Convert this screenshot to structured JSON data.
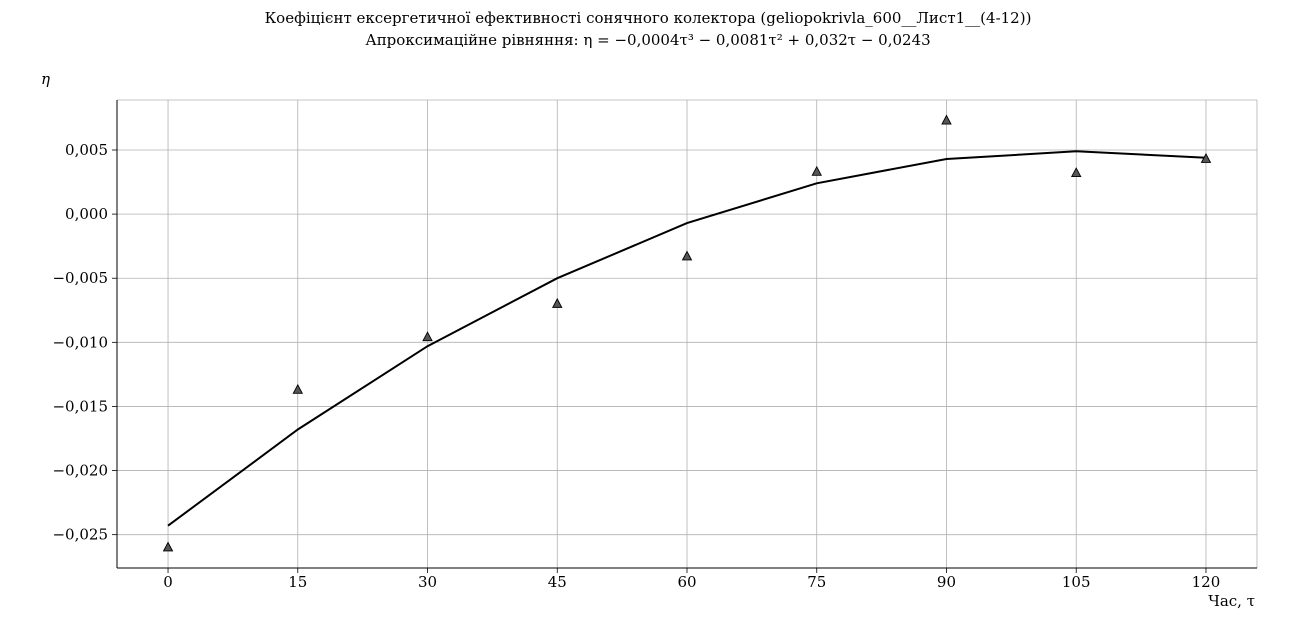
{
  "chart_data": {
    "type": "scatter",
    "title": "Коефіцієнт ексергетичної ефективності сонячного колектора (geliopokrivla_600__Лист1__(4-12))",
    "subtitle": "Апроксимаційне рівняння: η = −0,0004τ³ − 0,0081τ² + 0,032τ − 0,0243",
    "ylabel": "η",
    "xlabel": "Час, τ",
    "x_ticks": [
      "0",
      "15",
      "30",
      "45",
      "60",
      "75",
      "90",
      "105",
      "120"
    ],
    "y_ticks": [
      "0,005",
      "0,000",
      "−0,005",
      "−0,010",
      "−0,015",
      "−0,020",
      "−0,025"
    ],
    "xlim": [
      -5.9,
      125.9
    ],
    "ylim": [
      -0.0276,
      0.0089
    ],
    "grid": true,
    "series": [
      {
        "kind": "markers",
        "marker": "triangle",
        "color": "#555555",
        "x": [
          0,
          15,
          30,
          45,
          60,
          75,
          90,
          105,
          120
        ],
        "y": [
          -0.026,
          -0.0137,
          -0.0096,
          -0.007,
          -0.0033,
          0.0033,
          0.0073,
          0.0032,
          0.0043
        ]
      },
      {
        "kind": "line",
        "color": "#000000",
        "x": [
          0,
          15,
          30,
          45,
          60,
          75,
          90,
          105,
          120
        ],
        "y": [
          -0.0243,
          -0.0168,
          -0.0103,
          -0.005,
          -0.0007,
          0.0024,
          0.0043,
          0.0049,
          0.0044
        ]
      }
    ]
  }
}
